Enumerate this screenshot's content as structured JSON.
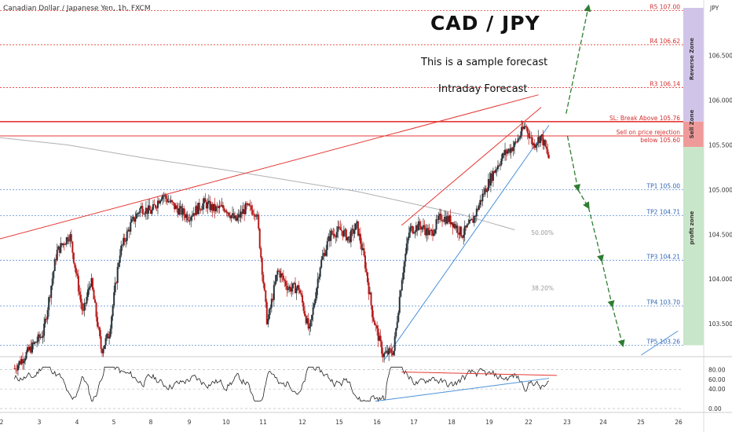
{
  "header": {
    "symbol": "Canadian Dollar / Japanese Yen, 1h, FXCM",
    "currency": "JPY"
  },
  "annotations": {
    "title": "CAD / JPY",
    "subtitle": "This is a sample forecast",
    "forecast_label": "Intraday Forecast",
    "reverse_zone": "Reverse Zone",
    "sell_zone": "Sell Zone",
    "profit_zone": "profit zone"
  },
  "colors": {
    "resistance": "#e53935",
    "target": "#5b8dd9",
    "trendline_up": "#4a90d9",
    "forecast_arrow": "#2e7d32",
    "reverse_zone": "#d1c4e9",
    "sell_zone": "#ef9a9a",
    "profit_zone": "#c8e6c9",
    "candle_up": "#263238",
    "candle_down": "#b71c1c",
    "ma": "#b0b0b0",
    "rsi": "#222222"
  },
  "chart_data": {
    "type": "candlestick",
    "x_ticks": [
      "2",
      "3",
      "4",
      "5",
      "8",
      "9",
      "10",
      "11",
      "12",
      "15",
      "16",
      "17",
      "18",
      "19",
      "22",
      "23",
      "24",
      "25",
      "26"
    ],
    "y_ticks": [
      "106.500",
      "106.000",
      "105.500",
      "105.000",
      "104.500",
      "104.000",
      "103.500"
    ],
    "levels": [
      {
        "name": "R5 107.00",
        "value": 107.0,
        "kind": "resistance"
      },
      {
        "name": "R4 106.62",
        "value": 106.62,
        "kind": "resistance"
      },
      {
        "name": "R3 106.14",
        "value": 106.14,
        "kind": "resistance"
      },
      {
        "name": "SL: Break Above 105.76",
        "value": 105.76,
        "kind": "stop"
      },
      {
        "name": "Sell on price rejection",
        "value": 105.6,
        "kind": "sell",
        "sublabel": "below 105.60"
      },
      {
        "name": "TP1 105.00",
        "value": 105.0,
        "kind": "target"
      },
      {
        "name": "TP2 104.71",
        "value": 104.71,
        "kind": "target"
      },
      {
        "name": "TP3 104.21",
        "value": 104.21,
        "kind": "target"
      },
      {
        "name": "TP4 103.70",
        "value": 103.7,
        "kind": "target"
      },
      {
        "name": "TP5 103.26",
        "value": 103.26,
        "kind": "target"
      }
    ],
    "fib_levels": [
      {
        "label": "50.00%",
        "value": 104.52
      },
      {
        "label": "38.20%",
        "value": 103.9
      }
    ],
    "price_path_anchors": [
      [
        2,
        103.0
      ],
      [
        3.1,
        103.4
      ],
      [
        3.6,
        104.3
      ],
      [
        4.1,
        104.5
      ],
      [
        4.6,
        103.6
      ],
      [
        4.9,
        104.0
      ],
      [
        5.3,
        103.2
      ],
      [
        5.6,
        103.4
      ],
      [
        6.0,
        104.3
      ],
      [
        6.4,
        104.6
      ],
      [
        6.8,
        104.8
      ],
      [
        7.2,
        104.75
      ],
      [
        7.6,
        104.95
      ],
      [
        8.1,
        104.8
      ],
      [
        8.6,
        104.7
      ],
      [
        9.2,
        104.85
      ],
      [
        9.6,
        104.78
      ],
      [
        10.0,
        104.8
      ],
      [
        10.4,
        104.65
      ],
      [
        10.8,
        104.8
      ],
      [
        11.2,
        104.75
      ],
      [
        11.6,
        103.5
      ],
      [
        12.0,
        104.1
      ],
      [
        12.4,
        103.9
      ],
      [
        12.8,
        103.9
      ],
      [
        13.2,
        103.4
      ],
      [
        13.6,
        104.15
      ],
      [
        14.0,
        104.5
      ],
      [
        14.4,
        104.55
      ],
      [
        14.7,
        104.45
      ],
      [
        15.0,
        104.6
      ],
      [
        15.3,
        104.2
      ],
      [
        15.6,
        103.6
      ],
      [
        16.0,
        103.15
      ],
      [
        16.4,
        103.2
      ],
      [
        16.7,
        104.0
      ],
      [
        17.0,
        104.55
      ],
      [
        17.4,
        104.6
      ],
      [
        17.8,
        104.5
      ],
      [
        18.2,
        104.7
      ],
      [
        18.6,
        104.65
      ],
      [
        19.0,
        104.5
      ],
      [
        19.4,
        104.65
      ],
      [
        19.8,
        104.95
      ],
      [
        20.2,
        105.2
      ],
      [
        20.6,
        105.4
      ],
      [
        21.0,
        105.5
      ],
      [
        21.4,
        105.72
      ],
      [
        21.7,
        105.5
      ],
      [
        22.0,
        105.6
      ],
      [
        22.3,
        105.35
      ]
    ],
    "forecast_path": [
      [
        23.0,
        105.6
      ],
      [
        23.4,
        105.0
      ],
      [
        23.8,
        104.8
      ],
      [
        24.3,
        104.21
      ],
      [
        24.7,
        103.7
      ],
      [
        25.1,
        103.26
      ]
    ],
    "ylim": [
      103.15,
      107.12
    ],
    "xlim": [
      1.45,
      27.4
    ],
    "rsi": {
      "y_ticks": [
        "80.00",
        "60.00",
        "40.00",
        "0.00"
      ],
      "ylim": [
        0,
        100
      ]
    }
  }
}
